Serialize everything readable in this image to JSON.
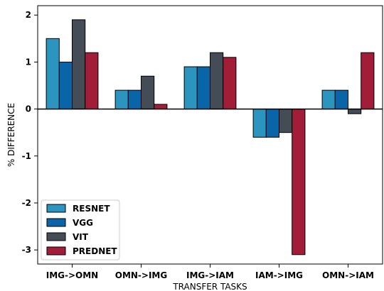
{
  "chart_data": {
    "type": "bar",
    "categories": [
      "IMG->OMN",
      "OMN->IMG",
      "IMG->IAM",
      "IAM->IMG",
      "OMN->IAM"
    ],
    "series": [
      {
        "name": "RESNET",
        "color": "#2b95c0",
        "values": [
          1.5,
          0.4,
          0.9,
          -0.6,
          0.4
        ]
      },
      {
        "name": "VGG",
        "color": "#0a64a8",
        "values": [
          1.0,
          0.4,
          0.9,
          -0.6,
          0.4
        ]
      },
      {
        "name": "VIT",
        "color": "#444c56",
        "values": [
          1.9,
          0.7,
          1.2,
          -0.5,
          -0.1
        ]
      },
      {
        "name": "PREDNET",
        "color": "#a11d38",
        "values": [
          1.2,
          0.1,
          1.1,
          -3.1,
          1.2
        ]
      }
    ],
    "xlabel": "TRANSFER TASKS",
    "ylabel": "% DIFFERENCE",
    "ylim": [
      -3.3,
      2.2
    ],
    "yticks": [
      2,
      1,
      0,
      -1,
      -2,
      -3
    ],
    "grid": false,
    "legend_position": "bottom-left"
  }
}
